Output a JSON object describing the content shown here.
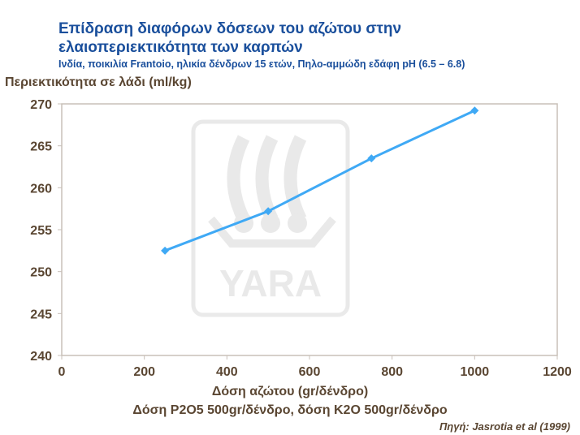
{
  "chart_data": {
    "type": "line",
    "title": "Επίδραση διαφόρων δόσεων του αζώτου στην",
    "title_line2": "ελαιοπεριεκτικότητα των καρπών",
    "subtitle": "Ινδία, ποικιλία Frantoio, ηλικία δένδρων 15 ετών, Πηλο-αμμώδη εδάφη pH (6.5 – 6.8)",
    "ylabel": "Περιεκτικότητα σε λάδι (ml/kg)",
    "xlabel": "Δόση αζώτου (gr/δένδρο)",
    "xlabel_note": "Δόση P2O5 500gr/δένδρο, δόση K2O 500gr/δένδρο",
    "source": "Πηγή: Jasrotia et al (1999)",
    "xlim": [
      0,
      1200
    ],
    "ylim": [
      240,
      270
    ],
    "xticks": [
      "0",
      "200",
      "400",
      "600",
      "800",
      "1000",
      "1200"
    ],
    "yticks": [
      "240",
      "245",
      "250",
      "255",
      "260",
      "265",
      "270"
    ],
    "grid": false,
    "series": [
      {
        "x": [
          250,
          500,
          750,
          1000
        ],
        "y": [
          252.5,
          257.2,
          263.5,
          269.2
        ],
        "color": "#3fa9f5",
        "marker": "diamond"
      }
    ],
    "watermark": "YARA"
  }
}
